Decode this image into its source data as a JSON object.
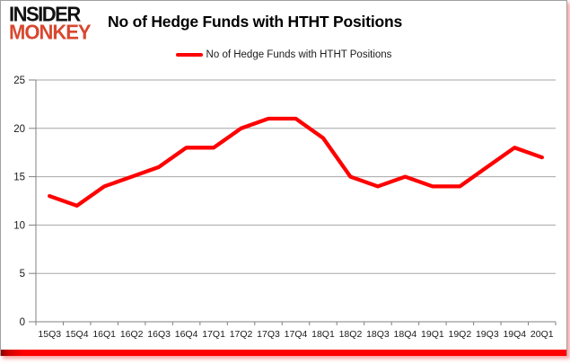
{
  "brand": {
    "line1": "INSIDER",
    "line2": "MONKEY",
    "color2": "#d8472f"
  },
  "header": {
    "title": "No of Hedge Funds with HTHT Positions"
  },
  "legend": {
    "label": "No of Hedge Funds with HTHT Positions",
    "swatch_color": "#fe0000"
  },
  "colors": {
    "line": "#fe0000",
    "gridline": "#a6a6a6",
    "axis": "#808080",
    "tick_text": "#1a1a1a",
    "accent_bar": "#fe0000",
    "card_border": "#a0a0a0"
  },
  "chart_data": {
    "type": "line",
    "title": "No of Hedge Funds with HTHT Positions",
    "categories": [
      "15Q3",
      "15Q4",
      "16Q1",
      "16Q2",
      "16Q3",
      "16Q4",
      "17Q1",
      "17Q2",
      "17Q3",
      "17Q4",
      "18Q1",
      "18Q2",
      "18Q3",
      "18Q4",
      "19Q1",
      "19Q2",
      "19Q3",
      "19Q4",
      "20Q1"
    ],
    "series": [
      {
        "name": "No of Hedge Funds with HTHT Positions",
        "color": "#fe0000",
        "values": [
          13,
          12,
          14,
          15,
          16,
          18,
          18,
          20,
          21,
          21,
          19,
          15,
          14,
          15,
          14,
          14,
          16,
          18,
          17
        ]
      }
    ],
    "xlabel": "",
    "ylabel": "",
    "ylim": [
      0,
      25
    ],
    "yticks": [
      0,
      5,
      10,
      15,
      20,
      25
    ],
    "grid": true,
    "legend_position": "top-center"
  }
}
